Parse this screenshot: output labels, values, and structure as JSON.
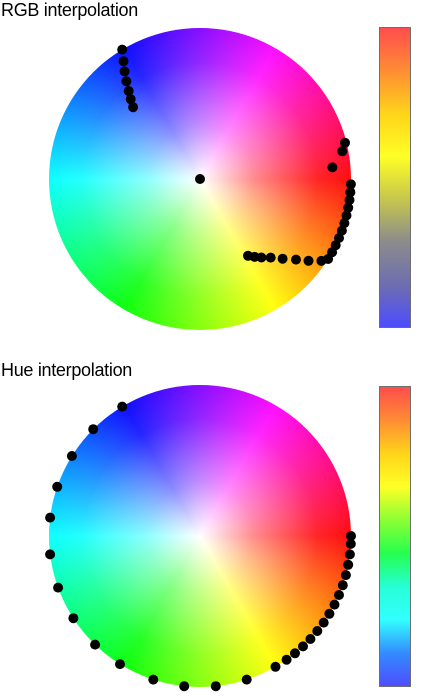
{
  "charts": [
    {
      "title": "RGB interpolation",
      "chart_data": {
        "type": "scatter",
        "title": "RGB interpolation",
        "description_free": true,
        "points_polar": [
          {
            "hue_deg": 239,
            "r": 1.0
          },
          {
            "hue_deg": 237,
            "r": 0.93
          },
          {
            "hue_deg": 235,
            "r": 0.87
          },
          {
            "hue_deg": 233,
            "r": 0.81
          },
          {
            "hue_deg": 231,
            "r": 0.75
          },
          {
            "hue_deg": 229,
            "r": 0.7
          },
          {
            "hue_deg": 227,
            "r": 0.65
          },
          {
            "hue_deg": 300,
            "r": 0.0
          },
          {
            "hue_deg": 58,
            "r": 0.6
          },
          {
            "hue_deg": 55,
            "r": 0.63
          },
          {
            "hue_deg": 52,
            "r": 0.66
          },
          {
            "hue_deg": 48,
            "r": 0.7
          },
          {
            "hue_deg": 44,
            "r": 0.76
          },
          {
            "hue_deg": 40,
            "r": 0.83
          },
          {
            "hue_deg": 37,
            "r": 0.9
          },
          {
            "hue_deg": 34,
            "r": 0.97
          },
          {
            "hue_deg": 355,
            "r": 0.88
          },
          {
            "hue_deg": 349,
            "r": 0.96
          },
          {
            "hue_deg": 346,
            "r": 0.99
          },
          {
            "hue_deg": 2,
            "r": 1.0
          },
          {
            "hue_deg": 5,
            "r": 1.0
          },
          {
            "hue_deg": 8,
            "r": 1.0
          },
          {
            "hue_deg": 11,
            "r": 1.0
          },
          {
            "hue_deg": 14,
            "r": 1.0
          },
          {
            "hue_deg": 17,
            "r": 1.0
          },
          {
            "hue_deg": 20,
            "r": 1.0
          },
          {
            "hue_deg": 23,
            "r": 1.0
          },
          {
            "hue_deg": 26,
            "r": 1.0
          },
          {
            "hue_deg": 29,
            "r": 1.0
          },
          {
            "hue_deg": 32,
            "r": 1.0
          }
        ],
        "colorbar": {
          "stops": [
            "#ff4d4d",
            "#ff8c33",
            "#ffd41a",
            "#ffff26",
            "#c7c74d",
            "#8c8c8c",
            "#6e6eb0",
            "#4d4dff"
          ]
        }
      }
    },
    {
      "title": "Hue interpolation",
      "chart_data": {
        "type": "scatter",
        "title": "Hue interpolation",
        "points_polar": [
          {
            "hue_deg": 239,
            "r": 1.0
          },
          {
            "hue_deg": 225,
            "r": 1.0
          },
          {
            "hue_deg": 212,
            "r": 1.0
          },
          {
            "hue_deg": 199,
            "r": 1.0
          },
          {
            "hue_deg": 187,
            "r": 1.0
          },
          {
            "hue_deg": 173,
            "r": 1.0
          },
          {
            "hue_deg": 160,
            "r": 1.0
          },
          {
            "hue_deg": 147,
            "r": 1.0
          },
          {
            "hue_deg": 134,
            "r": 1.0
          },
          {
            "hue_deg": 122,
            "r": 1.0
          },
          {
            "hue_deg": 108,
            "r": 1.0
          },
          {
            "hue_deg": 96,
            "r": 1.0
          },
          {
            "hue_deg": 84,
            "r": 1.0
          },
          {
            "hue_deg": 72,
            "r": 1.0
          },
          {
            "hue_deg": 60,
            "r": 1.0
          },
          {
            "hue_deg": 55,
            "r": 1.0
          },
          {
            "hue_deg": 51,
            "r": 1.0
          },
          {
            "hue_deg": 47,
            "r": 1.0
          },
          {
            "hue_deg": 43,
            "r": 1.0
          },
          {
            "hue_deg": 39,
            "r": 1.0
          },
          {
            "hue_deg": 35,
            "r": 1.0
          },
          {
            "hue_deg": 31,
            "r": 1.0
          },
          {
            "hue_deg": 27,
            "r": 1.0
          },
          {
            "hue_deg": 23,
            "r": 1.0
          },
          {
            "hue_deg": 19,
            "r": 1.0
          },
          {
            "hue_deg": 15,
            "r": 1.0
          },
          {
            "hue_deg": 11,
            "r": 1.0
          },
          {
            "hue_deg": 7,
            "r": 1.0
          },
          {
            "hue_deg": 3,
            "r": 1.0
          },
          {
            "hue_deg": 0,
            "r": 1.0
          }
        ],
        "colorbar": {
          "stops": [
            "#ff4d4d",
            "#ff8c33",
            "#ffd41a",
            "#ffff26",
            "#8cff33",
            "#26ff4d",
            "#26ffd4",
            "#33ffff",
            "#338cff",
            "#4d4dff"
          ]
        }
      }
    }
  ]
}
